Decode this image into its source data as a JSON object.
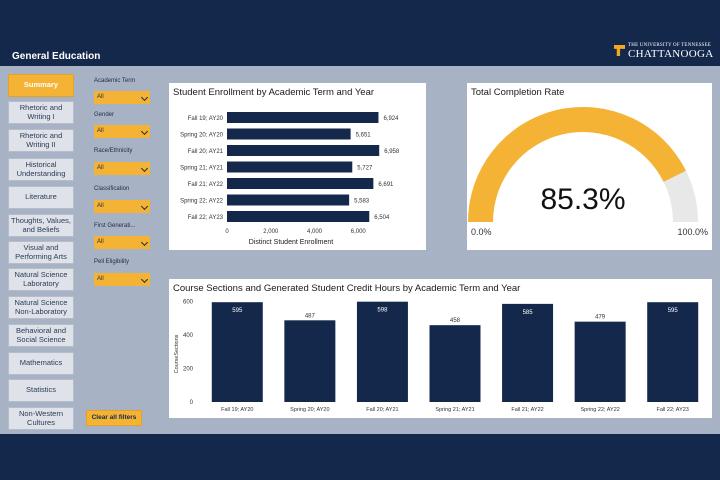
{
  "header": {
    "title": "General Education",
    "logo_small": "THE UNIVERSITY OF TENNESSEE",
    "logo_big": "CHATTANOOGA"
  },
  "nav": {
    "items": [
      {
        "label": "Summary",
        "active": true
      },
      {
        "label": "Rhetoric and Writing I",
        "active": false
      },
      {
        "label": "Rhetoric and Writing II",
        "active": false
      },
      {
        "label": "Historical Understanding",
        "active": false
      },
      {
        "label": "Literature",
        "active": false
      },
      {
        "label": "Thoughts, Values, and Beliefs",
        "active": false
      },
      {
        "label": "Visual and Performing Arts",
        "active": false
      },
      {
        "label": "Natural Science Laboratory",
        "active": false
      },
      {
        "label": "Natural Science Non-Laboratory",
        "active": false
      },
      {
        "label": "Behavioral and Social Science",
        "active": false
      },
      {
        "label": "Mathematics",
        "active": false
      },
      {
        "label": "Statistics",
        "active": false
      },
      {
        "label": "Non-Western Cultures",
        "active": false
      }
    ]
  },
  "filters": {
    "items": [
      {
        "label": "Academic Term",
        "value": "All"
      },
      {
        "label": "Gender",
        "value": "All"
      },
      {
        "label": "Race/Ethnicity",
        "value": "All"
      },
      {
        "label": "Classification",
        "value": "All"
      },
      {
        "label": "First Generati...",
        "value": "All"
      },
      {
        "label": "Pell Eligibility",
        "value": "All"
      }
    ],
    "clear_label": "Clear all filters"
  },
  "colors": {
    "navy": "#14284b",
    "bar": "#14284b",
    "gold": "#f5b335",
    "gauge_rest": "#e8e8e8"
  },
  "chart_data": [
    {
      "type": "bar",
      "orientation": "horizontal",
      "title": "Student Enrollment by Academic Term and Year",
      "xlabel": "Distinct Student Enrollment",
      "categories": [
        "Fall 19; AY20",
        "Spring 20; AY20",
        "Fall 20; AY21",
        "Spring 21; AY21",
        "Fall 21; AY22",
        "Spring 22; AY22",
        "Fall 22; AY23"
      ],
      "values": [
        6924,
        5651,
        6958,
        5727,
        6691,
        5583,
        6504
      ],
      "value_labels": [
        "6,924",
        "5,651",
        "6,958",
        "5,727",
        "6,691",
        "5,583",
        "6,504"
      ],
      "xticks": [
        0,
        2000,
        4000,
        6000
      ],
      "xtick_labels": [
        "0",
        "2,000",
        "4,000",
        "6,000"
      ],
      "xlim": [
        0,
        8000
      ]
    },
    {
      "type": "gauge",
      "title": "Total Completion Rate",
      "value": 85.3,
      "value_label": "85.3%",
      "min_label": "0.0%",
      "max_label": "100.0%",
      "range": [
        0,
        100
      ]
    },
    {
      "type": "bar",
      "orientation": "vertical",
      "title": "Course Sections and Generated Student Credit Hours by Academic Term and Year",
      "ylabel": "CourseSections",
      "categories": [
        "Fall 19; AY20",
        "Spring 20; AY20",
        "Fall 20; AY21",
        "Spring 21; AY21",
        "Fall 21; AY22",
        "Spring 22; AY22",
        "Fall 22; AY23"
      ],
      "values": [
        595,
        487,
        598,
        458,
        585,
        479,
        595
      ],
      "yticks": [
        0,
        200,
        400,
        600
      ],
      "ytick_labels": [
        "0",
        "200",
        "400",
        "600"
      ],
      "ylim": [
        0,
        620
      ]
    }
  ]
}
